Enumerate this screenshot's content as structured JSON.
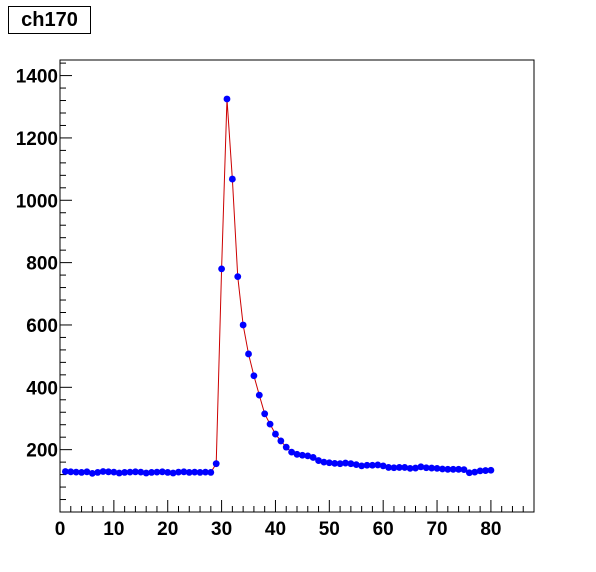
{
  "chart_data": {
    "type": "scatter",
    "title": "ch170",
    "xlabel": "",
    "ylabel": "",
    "xlim": [
      0,
      88
    ],
    "ylim": [
      0,
      1450
    ],
    "x_ticks": [
      0,
      10,
      20,
      30,
      40,
      50,
      60,
      70,
      80
    ],
    "y_ticks": [
      200,
      400,
      600,
      800,
      1000,
      1200,
      1400
    ],
    "grid": false,
    "legend": "none",
    "marker_color": "#0000ff",
    "line_color": "#cc0000",
    "series": [
      {
        "x": [
          1,
          2,
          3,
          4,
          5,
          6,
          7,
          8,
          9,
          10,
          11,
          12,
          13,
          14,
          15,
          16,
          17,
          18,
          19,
          20,
          21,
          22,
          23,
          24,
          25,
          26,
          27,
          28,
          29,
          30,
          31,
          32,
          33,
          34,
          35,
          36,
          37,
          38,
          39,
          40,
          41,
          42,
          43,
          44,
          45,
          46,
          47,
          48,
          49,
          50,
          51,
          52,
          53,
          54,
          55,
          56,
          57,
          58,
          59,
          60,
          61,
          62,
          63,
          64,
          65,
          66,
          67,
          68,
          69,
          70,
          71,
          72,
          73,
          74,
          75,
          76,
          77,
          78,
          79,
          80
        ],
        "y": [
          130,
          129,
          128,
          127,
          129,
          124,
          127,
          130,
          129,
          128,
          125,
          127,
          128,
          129,
          128,
          125,
          127,
          128,
          129,
          127,
          125,
          128,
          129,
          127,
          128,
          127,
          128,
          127,
          155,
          780,
          1325,
          1068,
          755,
          600,
          507,
          437,
          375,
          315,
          282,
          250,
          228,
          208,
          192,
          185,
          182,
          180,
          175,
          165,
          160,
          158,
          156,
          155,
          157,
          155,
          152,
          148,
          150,
          150,
          151,
          148,
          143,
          142,
          143,
          143,
          140,
          141,
          145,
          142,
          141,
          140,
          138,
          137,
          137,
          137,
          136,
          126,
          128,
          132,
          133,
          134
        ]
      }
    ]
  }
}
